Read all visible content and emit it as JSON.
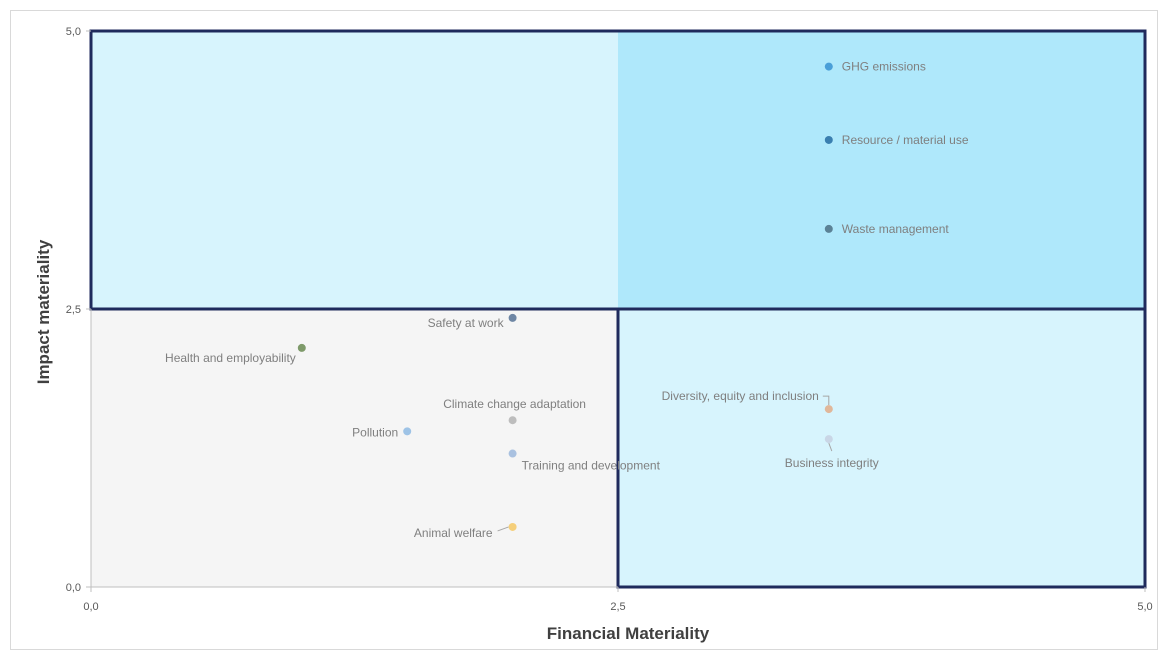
{
  "chart_data": {
    "type": "scatter",
    "title": "",
    "xlabel": "Financial Materiality",
    "ylabel": "Impact materiality",
    "xlim": [
      0,
      5
    ],
    "ylim": [
      0,
      5
    ],
    "x_ticks": [
      "0,0",
      "2,5",
      "5,0"
    ],
    "y_ticks": [
      "0,0",
      "2,5",
      "5,0"
    ],
    "grid": false,
    "quadrant_threshold": {
      "x": 2.5,
      "y": 2.5
    },
    "quadrant_colors": {
      "top_left": "#d7f4fd",
      "top_right": "#afe8fb",
      "bottom_left": "#f5f5f5",
      "bottom_right": "#d7f4fd",
      "border": "#1f2a5c"
    },
    "points": [
      {
        "label": "GHG emissions",
        "x": 3.5,
        "y": 4.68,
        "color": "#4a9fd8"
      },
      {
        "label": "Resource / material use",
        "x": 3.5,
        "y": 4.02,
        "color": "#3a7fb0"
      },
      {
        "label": "Waste management",
        "x": 3.5,
        "y": 3.22,
        "color": "#5b8296"
      },
      {
        "label": "Safety at work",
        "x": 2.0,
        "y": 2.42,
        "color": "#6e86a4"
      },
      {
        "label": "Health and employability",
        "x": 1.0,
        "y": 2.15,
        "color": "#7e9a6a"
      },
      {
        "label": "Climate change adaptation",
        "x": 2.0,
        "y": 1.5,
        "color": "#bdbdbd"
      },
      {
        "label": "Pollution",
        "x": 1.5,
        "y": 1.4,
        "color": "#9ec3e6"
      },
      {
        "label": "Training and development",
        "x": 2.0,
        "y": 1.2,
        "color": "#a9c1e0"
      },
      {
        "label": "Animal welfare",
        "x": 2.0,
        "y": 0.54,
        "color": "#f5cf7a"
      },
      {
        "label": "Diversity, equity and inclusion",
        "x": 3.5,
        "y": 1.6,
        "color": "#e0b79a"
      },
      {
        "label": "Business integrity",
        "x": 3.5,
        "y": 1.33,
        "color": "#c9d6e6"
      }
    ]
  }
}
